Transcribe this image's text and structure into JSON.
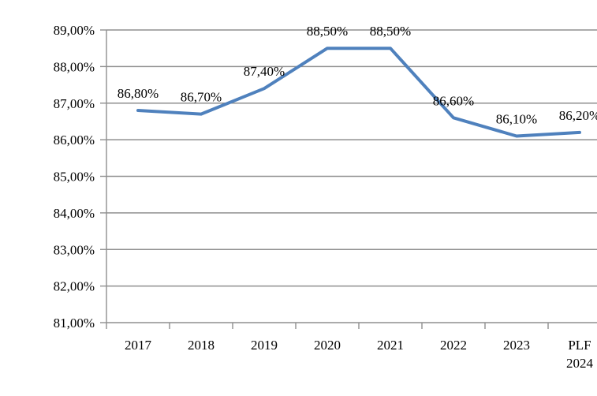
{
  "chart_data": {
    "type": "line",
    "title": "",
    "xlabel": "",
    "ylabel": "",
    "categories": [
      "2017",
      "2018",
      "2019",
      "2020",
      "2021",
      "2022",
      "2023",
      "PLF 2024"
    ],
    "values": [
      86.8,
      86.7,
      87.4,
      88.5,
      88.5,
      86.6,
      86.1,
      86.2
    ],
    "data_labels": [
      "86,80%",
      "86,70%",
      "87,40%",
      "88,50%",
      "88,50%",
      "86,60%",
      "86,10%",
      "86,20%"
    ],
    "y_ticks": [
      "89,00%",
      "88,00%",
      "87,00%",
      "86,00%",
      "85,00%",
      "84,00%",
      "83,00%",
      "82,00%",
      "81,00%"
    ],
    "y_tick_values": [
      89,
      88,
      87,
      86,
      85,
      84,
      83,
      82,
      81
    ],
    "ylim": [
      81,
      89
    ],
    "grid": true,
    "legend": "none",
    "line_color": "#4F81BD",
    "gridline_color": "#8F8F8F",
    "axis_color": "#8F8F8F",
    "text_color": "#000000"
  }
}
